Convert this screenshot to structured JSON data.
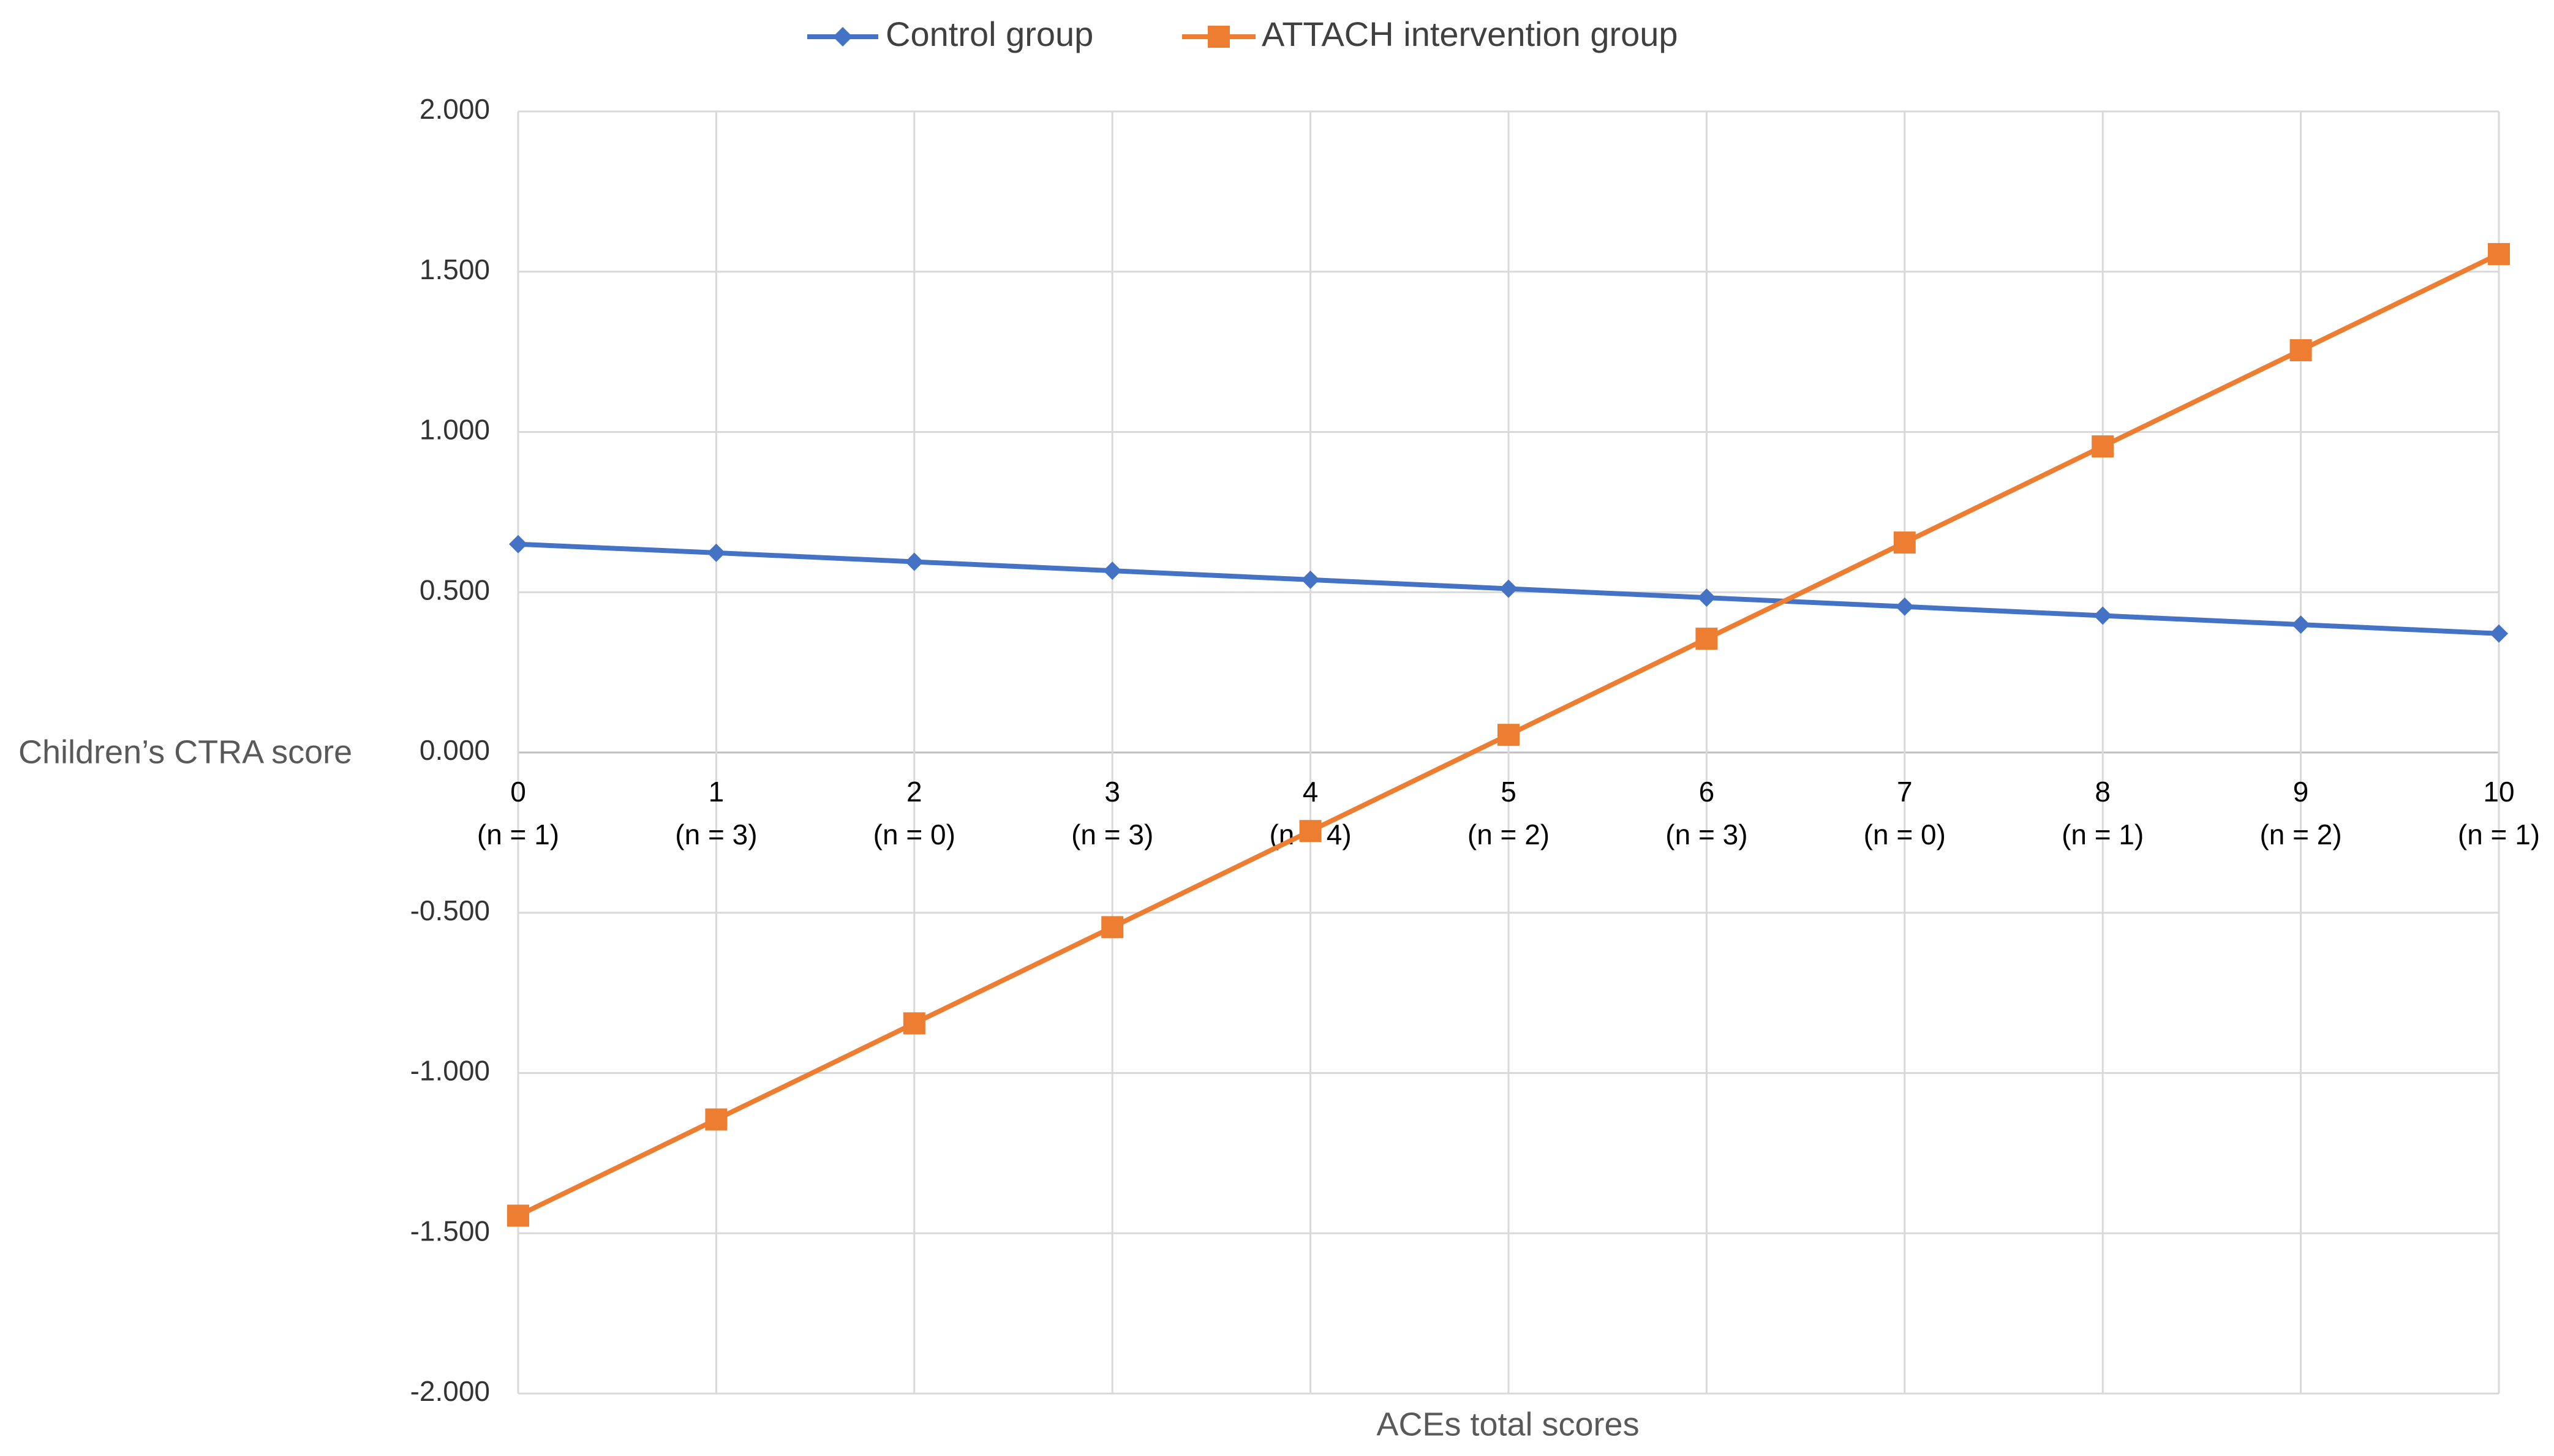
{
  "chart_data": {
    "type": "line",
    "title": "",
    "xlabel": "ACEs total scores",
    "ylabel": "Children’s CTRA score",
    "categories": [
      "0",
      "1",
      "2",
      "3",
      "4",
      "5",
      "6",
      "7",
      "8",
      "9",
      "10"
    ],
    "category_sublabels": [
      "(n = 1)",
      "(n = 3)",
      "(n = 0)",
      "(n = 3)",
      "(n = 4)",
      "(n = 2)",
      "(n = 3)",
      "(n = 0)",
      "(n = 1)",
      "(n = 2)",
      "(n = 1)"
    ],
    "y_ticks": [
      "2.000",
      "1.500",
      "1.000",
      "0.500",
      "0.000",
      "-0.500",
      "-1.000",
      "-1.500",
      "-2.000"
    ],
    "y_tick_values": [
      2,
      1.5,
      1,
      0.5,
      0,
      -0.5,
      -1,
      -1.5,
      -2
    ],
    "ylim": [
      -2,
      2
    ],
    "grid": true,
    "legend_position": "top-center",
    "series": [
      {
        "name": "Control group",
        "color": "#4472C4",
        "marker": "diamond",
        "values": [
          0.65,
          0.623,
          0.595,
          0.567,
          0.539,
          0.511,
          0.483,
          0.455,
          0.427,
          0.399,
          0.371
        ]
      },
      {
        "name": "ATTACH intervention group",
        "color": "#ED7D31",
        "marker": "square",
        "values": [
          -1.445,
          -1.145,
          -0.845,
          -0.545,
          -0.245,
          0.055,
          0.355,
          0.655,
          0.955,
          1.255,
          1.555
        ]
      }
    ]
  }
}
